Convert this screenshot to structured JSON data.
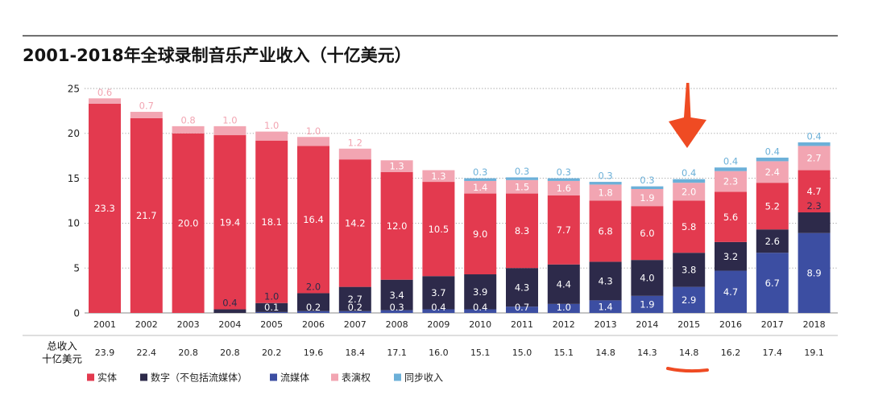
{
  "chart_data": {
    "type": "bar",
    "stacked": true,
    "title": "2001-2018年全球录制音乐产业收入（十亿美元）",
    "categories": [
      "2001",
      "2002",
      "2003",
      "2004",
      "2005",
      "2006",
      "2007",
      "2008",
      "2009",
      "2010",
      "2011",
      "2012",
      "2013",
      "2014",
      "2015",
      "2016",
      "2017",
      "2018"
    ],
    "ylim": [
      0,
      25
    ],
    "yticks": [
      0,
      5,
      10,
      15,
      20,
      25
    ],
    "grid": true,
    "legend": "bottom-left",
    "series": [
      {
        "name": "实体",
        "color": "#e33a4f",
        "values": [
          23.3,
          21.7,
          20.0,
          19.4,
          18.1,
          16.4,
          14.2,
          12.0,
          10.5,
          9.0,
          8.3,
          7.7,
          6.8,
          6.0,
          5.8,
          5.6,
          5.2,
          4.7
        ]
      },
      {
        "name": "数字（不包括流媒体）",
        "color": "#2d2a4a",
        "values": [
          null,
          null,
          null,
          0.4,
          1.0,
          2.0,
          2.7,
          3.4,
          3.7,
          3.9,
          4.3,
          4.4,
          4.3,
          4.0,
          3.8,
          3.2,
          2.6,
          2.3
        ]
      },
      {
        "name": "流媒体",
        "color": "#3c4ea2",
        "values": [
          null,
          null,
          null,
          null,
          0.1,
          0.2,
          0.2,
          0.3,
          0.4,
          0.4,
          0.7,
          1.0,
          1.4,
          1.9,
          2.9,
          4.7,
          6.7,
          8.9
        ]
      },
      {
        "name": "表演权",
        "color": "#f2a5b2",
        "values": [
          0.6,
          0.7,
          0.8,
          1.0,
          1.0,
          1.0,
          1.2,
          1.3,
          1.3,
          1.4,
          1.5,
          1.6,
          1.8,
          1.9,
          2.0,
          2.3,
          2.4,
          2.7
        ]
      },
      {
        "name": "同步收入",
        "color": "#6cb0d8",
        "values": [
          null,
          null,
          null,
          null,
          null,
          null,
          null,
          null,
          null,
          0.3,
          0.3,
          0.3,
          0.3,
          0.3,
          0.4,
          0.4,
          0.4,
          0.4
        ]
      }
    ],
    "totals": {
      "label": [
        "总收入",
        "十亿美元"
      ],
      "values": [
        23.9,
        22.4,
        20.8,
        20.8,
        20.2,
        19.6,
        18.4,
        17.1,
        16.0,
        15.1,
        15.0,
        15.1,
        14.8,
        14.3,
        14.8,
        16.2,
        17.4,
        19.1
      ]
    }
  },
  "annotations": {
    "color": "#ef4b23"
  }
}
